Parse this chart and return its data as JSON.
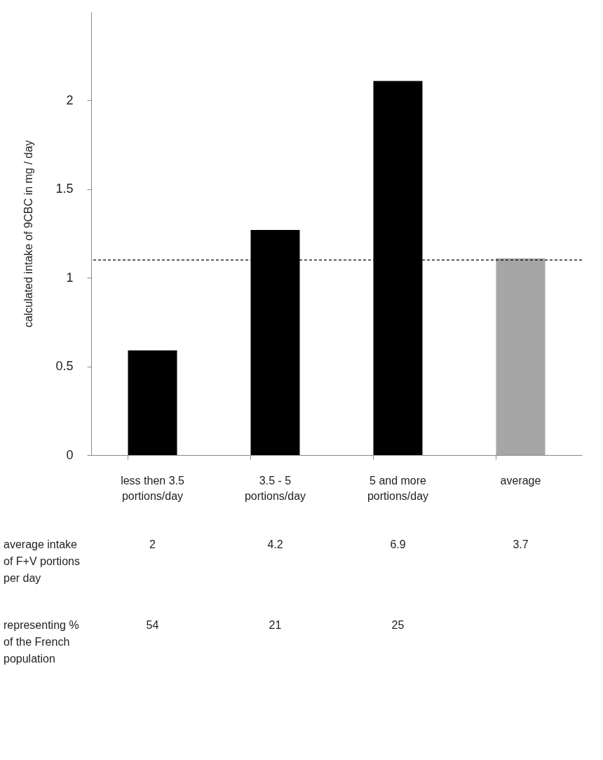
{
  "chart_data": {
    "type": "bar",
    "ylabel": "calculated intake of 9CBC in mg / day",
    "categories": [
      "less then 3.5 portions/day",
      "3.5 - 5 portions/day",
      "5 and more portions/day",
      "average"
    ],
    "values": [
      0.59,
      1.27,
      2.11,
      1.11
    ],
    "colors": [
      "#000000",
      "#000000",
      "#000000",
      "#a6a6a6"
    ],
    "ylim": [
      0,
      2.5
    ],
    "yticks": [
      0,
      0.5,
      1,
      1.5,
      2
    ],
    "grid": false,
    "ref_lines": [
      {
        "axis": "y",
        "value": 1.1,
        "color": "#000000",
        "line_style": "dashed"
      }
    ],
    "annotations": [
      "average intake of F+V portions per day",
      "2",
      "4.2",
      "6.9",
      "3.7",
      "representing % of the French population",
      "54",
      "21",
      "25"
    ]
  }
}
